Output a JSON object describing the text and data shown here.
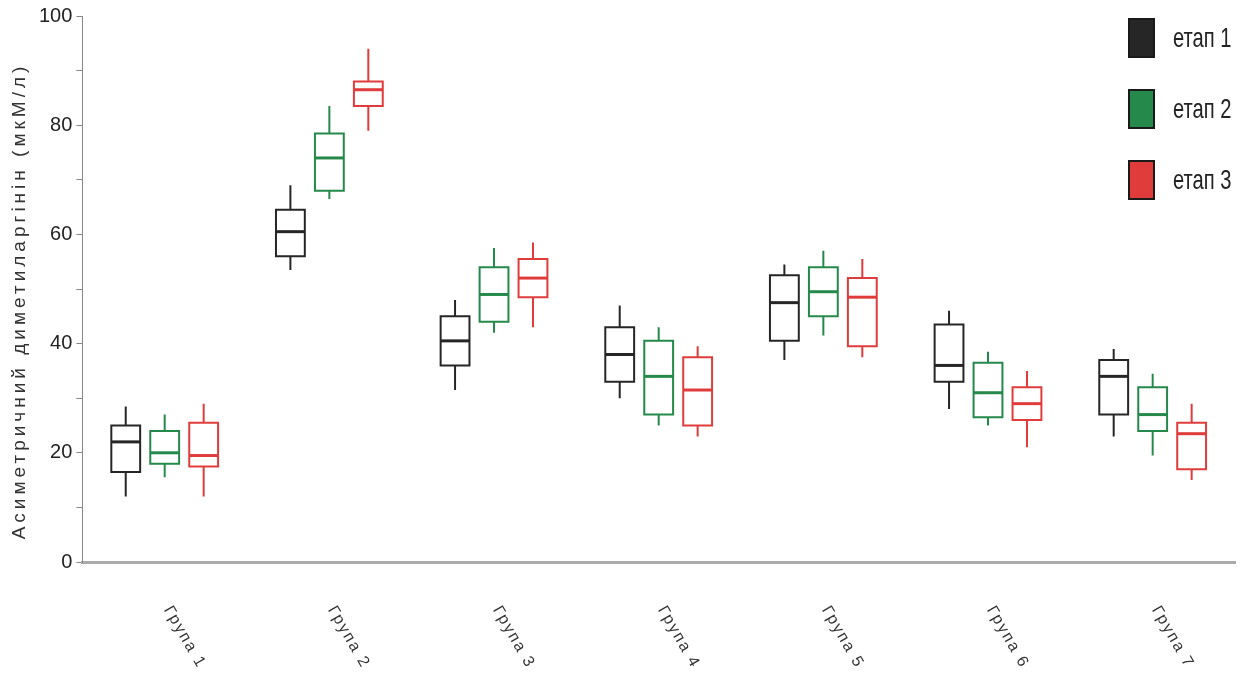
{
  "chart_data": {
    "type": "box",
    "ylabel": "Асиметричний диметиларгінін (мкМ/л)",
    "categories": [
      "Група 1",
      "Група 2",
      "Група 3",
      "Група 4",
      "Група 5",
      "Група 6",
      "Група 7"
    ],
    "ylim": [
      0,
      100
    ],
    "yticks": [
      0,
      {
        "value": 10,
        "label": null
      },
      20,
      {
        "value": 30,
        "label": null
      },
      40,
      {
        "value": 50,
        "label": null
      },
      60,
      {
        "value": 70,
        "label": null
      },
      80,
      {
        "value": 90,
        "label": null
      },
      100
    ],
    "legend": "top right",
    "series": [
      {
        "name": "етап 1",
        "color": "#262626",
        "boxes": [
          {
            "low": 12,
            "q1": 16.5,
            "median": 22,
            "q3": 25,
            "high": 28.5
          },
          {
            "low": 53.5,
            "q1": 56,
            "median": 60.5,
            "q3": 64.5,
            "high": 69
          },
          {
            "low": 31.5,
            "q1": 36,
            "median": 40.5,
            "q3": 45,
            "high": 48
          },
          {
            "low": 30,
            "q1": 33,
            "median": 38,
            "q3": 43,
            "high": 47
          },
          {
            "low": 37,
            "q1": 40.5,
            "median": 47.5,
            "q3": 52.5,
            "high": 54.5
          },
          {
            "low": 28,
            "q1": 33,
            "median": 36,
            "q3": 43.5,
            "high": 46
          },
          {
            "low": 23,
            "q1": 27,
            "median": 34,
            "q3": 37,
            "high": 39
          }
        ]
      },
      {
        "name": "етап 2",
        "color": "#24894b",
        "boxes": [
          {
            "low": 15.5,
            "q1": 18,
            "median": 20,
            "q3": 24,
            "high": 27
          },
          {
            "low": 66.5,
            "q1": 68,
            "median": 74,
            "q3": 78.5,
            "high": 83.5
          },
          {
            "low": 42,
            "q1": 44,
            "median": 49,
            "q3": 54,
            "high": 57.5
          },
          {
            "low": 25,
            "q1": 27,
            "median": 34,
            "q3": 40.5,
            "high": 43
          },
          {
            "low": 41.5,
            "q1": 45,
            "median": 49.5,
            "q3": 54,
            "high": 57
          },
          {
            "low": 25,
            "q1": 26.5,
            "median": 31,
            "q3": 36.5,
            "high": 38.5
          },
          {
            "low": 19.5,
            "q1": 24,
            "median": 27,
            "q3": 32,
            "high": 34.5
          }
        ]
      },
      {
        "name": "етап 3",
        "color": "#e03c3c",
        "boxes": [
          {
            "low": 12,
            "q1": 17.5,
            "median": 19.5,
            "q3": 25.5,
            "high": 29
          },
          {
            "low": 79,
            "q1": 83.5,
            "median": 86.5,
            "q3": 88,
            "high": 94
          },
          {
            "low": 43,
            "q1": 48.5,
            "median": 52,
            "q3": 55.5,
            "high": 58.5
          },
          {
            "low": 23,
            "q1": 25,
            "median": 31.5,
            "q3": 37.5,
            "high": 39.5
          },
          {
            "low": 37.5,
            "q1": 39.5,
            "median": 48.5,
            "q3": 52,
            "high": 55.5
          },
          {
            "low": 21,
            "q1": 26,
            "median": 29,
            "q3": 32,
            "high": 35
          },
          {
            "low": 15,
            "q1": 17,
            "median": 23.5,
            "q3": 25.5,
            "high": 29
          }
        ]
      }
    ]
  }
}
